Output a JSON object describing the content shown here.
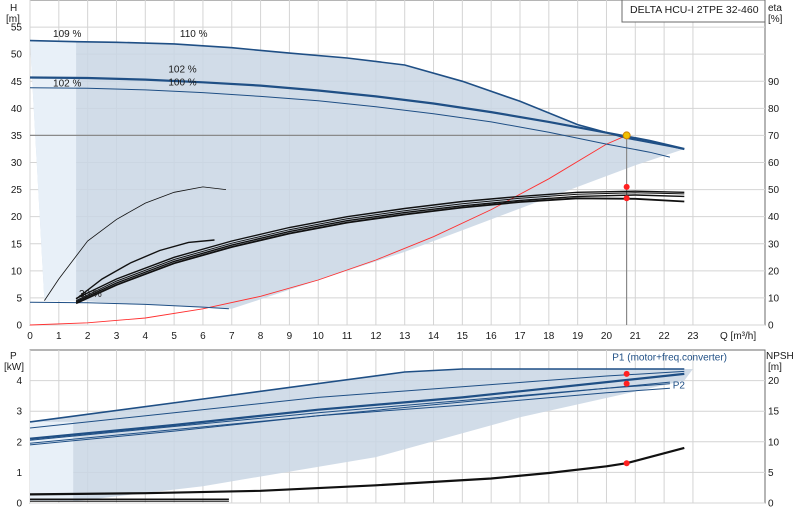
{
  "chart_data": [
    {
      "type": "line",
      "panel": "head",
      "title": "DELTA HCU-I 2TPE 32-460",
      "xlabel": "Q [m³/h]",
      "ylabel_left": [
        "H",
        "[m]"
      ],
      "ylabel_right": [
        "eta",
        "[%]"
      ],
      "xlim": [
        0,
        25.5
      ],
      "ylim": [
        0,
        60
      ],
      "y2lim": [
        0,
        120
      ],
      "grid": true,
      "x_ticks": [
        0,
        1,
        2,
        3,
        4,
        5,
        6,
        7,
        8,
        9,
        10,
        11,
        12,
        13,
        14,
        15,
        16,
        17,
        18,
        19,
        20,
        21,
        22,
        23
      ],
      "y_ticks": [
        0,
        5,
        10,
        15,
        20,
        25,
        30,
        35,
        40,
        45,
        50,
        55
      ],
      "y2_ticks": [
        0,
        10,
        20,
        30,
        40,
        50,
        60,
        70,
        80,
        90
      ],
      "colors": {
        "envelope": "#c9d6e4",
        "envelope_light": "#e8f0f8",
        "head": "#1f4f85",
        "eff": "#111111",
        "system": "#ff3030",
        "duty": "#f0c000",
        "dot": "#ff2020"
      },
      "speed_labels": [
        {
          "text": "109 %",
          "x": 0.8,
          "y": 53.2
        },
        {
          "text": "110 %",
          "x": 5.2,
          "y": 53.2
        },
        {
          "text": "102 %",
          "x": 0.8,
          "y": 44.0
        },
        {
          "text": "102 %",
          "x": 4.8,
          "y": 46.6
        },
        {
          "text": "100 %",
          "x": 4.8,
          "y": 44.2
        },
        {
          "text": "30 %",
          "x": 1.7,
          "y": 5.2
        }
      ],
      "envelope_max": {
        "x": [
          0,
          1.6,
          3,
          5,
          7,
          9,
          11,
          13,
          15,
          17,
          19,
          20.7,
          22.7
        ],
        "y": [
          52.5,
          52.3,
          52.2,
          51.9,
          51.2,
          50.2,
          49.3,
          48.0,
          45.0,
          41.3,
          37.0,
          34.5,
          32.5
        ]
      },
      "envelope_min": {
        "x": [
          0.5,
          1.6,
          2.5,
          4,
          6,
          7,
          9,
          11,
          13,
          15,
          17,
          19,
          21,
          22.7
        ],
        "y": [
          4.5,
          4.5,
          4.2,
          3.8,
          3.2,
          3.0,
          6.5,
          10.0,
          13.5,
          17.5,
          21.5,
          25.5,
          29.5,
          32.5
        ]
      },
      "envelope_light_boundary": {
        "x": [
          0.5,
          1.6,
          1.6,
          0
        ],
        "y": [
          4.5,
          4.5,
          52.5,
          52.5
        ]
      },
      "head_curves": [
        {
          "x": [
            0,
            1.6,
            3,
            5,
            7,
            9,
            11,
            13,
            15,
            17,
            19,
            20.7,
            22.7
          ],
          "y": [
            52.5,
            52.3,
            52.2,
            51.9,
            51.2,
            50.2,
            49.3,
            48.0,
            45.0,
            41.3,
            37.0,
            34.5,
            32.5
          ],
          "width": 1.6
        },
        {
          "x": [
            0,
            2,
            4,
            6,
            8,
            10,
            12,
            14,
            16,
            18,
            20,
            21.5,
            22.7
          ],
          "y": [
            45.7,
            45.6,
            45.3,
            44.8,
            44.2,
            43.3,
            42.2,
            40.9,
            39.3,
            37.5,
            35.5,
            34.0,
            32.5
          ],
          "width": 2.2
        },
        {
          "x": [
            0,
            2,
            4,
            6,
            8,
            10,
            12,
            14,
            16,
            18,
            20,
            21.5,
            22.2
          ],
          "y": [
            43.8,
            43.7,
            43.4,
            42.9,
            42.2,
            41.4,
            40.3,
            39.0,
            37.5,
            35.6,
            33.4,
            31.9,
            31.0
          ],
          "width": 1.0
        },
        {
          "x": [
            0,
            2,
            4,
            6,
            6.9
          ],
          "y": [
            4.2,
            4.1,
            3.8,
            3.3,
            3.0
          ],
          "width": 1.0
        }
      ],
      "duty_line": {
        "x": [
          0,
          20.7
        ],
        "y": [
          35,
          35
        ]
      },
      "duty_vertical": {
        "x": [
          20.7,
          20.7
        ],
        "y": [
          0,
          35
        ]
      },
      "duty_point": {
        "x": 20.7,
        "y": 35
      },
      "eff_dots_eta": [
        {
          "x": 20.7,
          "eta": 51.0
        },
        {
          "x": 20.7,
          "eta": 46.8
        }
      ],
      "system_curve": {
        "x": [
          0,
          2,
          4,
          6,
          8,
          10,
          12,
          14,
          16,
          18,
          20,
          20.7
        ],
        "y": [
          0,
          0.4,
          1.3,
          3.0,
          5.3,
          8.3,
          12.0,
          16.3,
          21.3,
          27.0,
          33.4,
          35.0
        ]
      },
      "eff_curves_eta": [
        {
          "x": [
            0.5,
            1.0,
            2.0,
            3.0,
            4.0,
            5.0,
            6.0,
            6.8
          ],
          "eta": [
            9,
            17,
            31,
            39,
            45,
            49,
            51,
            50
          ],
          "width": 0.8
        },
        {
          "x": [
            1.6,
            2.5,
            3.5,
            4.5,
            5.5,
            6.4
          ],
          "eta": [
            9.6,
            17,
            23,
            27.5,
            30.5,
            31.4
          ],
          "width": 1.4
        },
        {
          "x": [
            1.6,
            3,
            5,
            7,
            9,
            11,
            13,
            15,
            17,
            19,
            21,
            22.7
          ],
          "eta": [
            9.8,
            17,
            25,
            31,
            36,
            40,
            43,
            45.6,
            47.5,
            49,
            49.4,
            49.0
          ],
          "width": 1.4
        },
        {
          "x": [
            1.6,
            3,
            5,
            7,
            9,
            11,
            13,
            15,
            17,
            19,
            21,
            22.7
          ],
          "eta": [
            8.6,
            15.5,
            23.5,
            29.5,
            34.5,
            38.5,
            41.5,
            44,
            46,
            47.5,
            48.0,
            47.5
          ],
          "width": 1.4
        },
        {
          "x": [
            1.6,
            3,
            5,
            7,
            9,
            11,
            13,
            15,
            17,
            19,
            21,
            22.7
          ],
          "eta": [
            8.0,
            14.8,
            22.8,
            28.8,
            33.8,
            37.8,
            40.8,
            43.4,
            45.4,
            46.8,
            46.6,
            45.6
          ],
          "width": 1.8
        },
        {
          "x": [
            1.6,
            3,
            5,
            7,
            9,
            11,
            13,
            15,
            17,
            19,
            21,
            22.7
          ],
          "eta": [
            9.0,
            16.2,
            24.2,
            30.2,
            35.2,
            39.2,
            42.2,
            44.8,
            46.8,
            48.3,
            48.8,
            48.4
          ],
          "width": 1.0
        }
      ]
    },
    {
      "type": "line",
      "panel": "power",
      "ylabel_left": [
        "P",
        "[kW]"
      ],
      "ylabel_right": [
        "NPSH",
        "[m]"
      ],
      "xlim": [
        0,
        25.5
      ],
      "ylim": [
        0,
        5
      ],
      "y2lim": [
        0,
        25
      ],
      "grid": true,
      "y_ticks": [
        0,
        1,
        2,
        3,
        4
      ],
      "y2_ticks": [
        0,
        5,
        10,
        15,
        20
      ],
      "series_labels": [
        {
          "text": "P1 (motor+freq.converter)",
          "x": 20.2,
          "y": 4.65
        },
        {
          "text": "P2",
          "x": 22.3,
          "y": 3.75
        }
      ],
      "envelope_top": {
        "x": [
          0,
          6,
          13,
          15,
          23
        ],
        "y": [
          2.65,
          3.4,
          4.28,
          4.38,
          4.38
        ]
      },
      "envelope_bottom": {
        "x": [
          1.5,
          6,
          12,
          17,
          22.7
        ],
        "y": [
          0.05,
          0.55,
          1.5,
          2.8,
          4.0
        ]
      },
      "envelope_light_boundary": {
        "x": [
          0,
          1.5,
          1.5,
          0
        ],
        "y": [
          0.05,
          0.05,
          2.65,
          2.65
        ]
      },
      "power_curves": [
        {
          "x": [
            0,
            6,
            13,
            15,
            22.7
          ],
          "y": [
            2.65,
            3.4,
            4.28,
            4.38,
            4.38
          ],
          "width": 1.6
        },
        {
          "x": [
            0,
            5,
            10,
            15,
            20,
            22.7
          ],
          "y": [
            2.45,
            2.95,
            3.45,
            3.8,
            4.15,
            4.3
          ],
          "width": 1.0
        },
        {
          "x": [
            0,
            5,
            10,
            15,
            20,
            22.7
          ],
          "y": [
            2.1,
            2.55,
            3.05,
            3.45,
            3.95,
            4.22
          ],
          "width": 2.2
        },
        {
          "x": [
            0,
            5,
            10,
            15,
            20,
            22.2
          ],
          "y": [
            1.9,
            2.35,
            2.85,
            3.3,
            3.75,
            3.95
          ],
          "width": 1.0
        },
        {
          "x": [
            0,
            5,
            10,
            15,
            20,
            22.2
          ],
          "y": [
            2.05,
            2.5,
            2.95,
            3.35,
            3.75,
            3.9
          ],
          "width": 1.0
        },
        {
          "x": [
            0,
            5,
            10,
            15,
            20,
            22.2
          ],
          "y": [
            1.95,
            2.4,
            2.85,
            3.2,
            3.6,
            3.75
          ],
          "width": 1.0
        }
      ],
      "low_speed_curves": [
        {
          "x": [
            0,
            6.9
          ],
          "y": [
            0.12,
            0.12
          ],
          "width": 1.6
        },
        {
          "x": [
            0,
            6.9
          ],
          "y": [
            0.06,
            0.06
          ],
          "width": 1.0
        }
      ],
      "npsh_curve": {
        "x": [
          0,
          4,
          8,
          12,
          16,
          18,
          20,
          20.7,
          22.7
        ],
        "npsh": [
          1.4,
          1.6,
          2.0,
          2.9,
          4.0,
          4.9,
          6.0,
          6.5,
          9.0
        ],
        "width": 2.2
      },
      "dots": [
        {
          "x": 20.7,
          "y": 4.22
        },
        {
          "x": 20.7,
          "y": 3.9
        },
        {
          "x": 20.7,
          "npsh": 6.5
        }
      ]
    }
  ]
}
